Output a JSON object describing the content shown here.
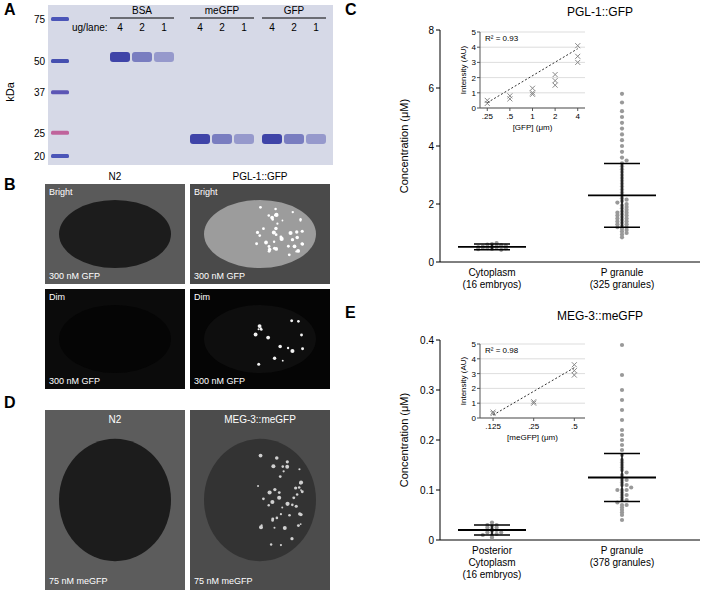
{
  "panel_labels": [
    "A",
    "B",
    "C",
    "D",
    "E"
  ],
  "gel": {
    "unit_label": "kDa",
    "ladder": [
      75,
      50,
      37,
      25,
      20
    ],
    "lane_header": "ug/lane:",
    "groups": [
      {
        "name": "BSA",
        "lanes": [
          4,
          2,
          1
        ]
      },
      {
        "name": "meGFP",
        "lanes": [
          4,
          2,
          1
        ]
      },
      {
        "name": "GFP",
        "lanes": [
          4,
          2,
          1
        ]
      }
    ]
  },
  "images_b": {
    "columns": [
      "N2",
      "PGL-1::GFP"
    ],
    "rows": [
      "Bright",
      "Dim"
    ],
    "caption": "300 nM GFP"
  },
  "images_d": {
    "columns": [
      "N2",
      "MEG-3::meGFP"
    ],
    "caption": "75 nM meGFP"
  },
  "chart_data": [
    {
      "type": "strip",
      "title": "PGL-1::GFP",
      "y_label": "Concentration (μM)",
      "categories": [
        "Cytoplasm\n(16 embryos)",
        "P granule\n(325 granules)"
      ],
      "points": [
        [
          0.45,
          0.5,
          0.52,
          0.55,
          0.48,
          0.6,
          0.62,
          0.42,
          0.5,
          0.58,
          0.65,
          0.47,
          0.53,
          0.56,
          0.44,
          0.51
        ],
        [
          0.85,
          0.95,
          1.0,
          1.05,
          1.1,
          1.15,
          1.2,
          1.2,
          1.25,
          1.3,
          1.3,
          1.35,
          1.4,
          1.4,
          1.45,
          1.5,
          1.5,
          1.55,
          1.6,
          1.6,
          1.65,
          1.7,
          1.7,
          1.75,
          1.8,
          1.85,
          1.9,
          1.95,
          2.0,
          2.05,
          2.1,
          2.15,
          2.2,
          2.3,
          2.4,
          2.5,
          2.6,
          2.7,
          2.8,
          2.9,
          3.0,
          3.1,
          3.2,
          3.3,
          3.4,
          3.5,
          3.6,
          3.8,
          4.0,
          4.2,
          4.4,
          4.6,
          4.8,
          5.0,
          5.2,
          5.5,
          5.8
        ]
      ],
      "values": [
        0.52,
        2.3
      ],
      "error": [
        0.1,
        1.1
      ],
      "color": "#999999",
      "ylim": [
        0,
        8
      ],
      "yticks": [
        0,
        2,
        4,
        6,
        8
      ]
    },
    {
      "type": "scatter",
      "x_label": "[GFP] (μm)",
      "y_label": "Intensity (AU)",
      "annotations": [
        "R² = 0.93"
      ],
      "log": "x",
      "grid": true,
      "xlim": [
        0.2,
        5
      ],
      "xticks": [
        {
          "value": 0.25,
          "label": ".25"
        },
        {
          "value": 0.5,
          "label": ".5"
        },
        1,
        2,
        4
      ],
      "ylim": [
        0,
        5
      ],
      "yticks": [
        0,
        1,
        2,
        3,
        4,
        5
      ],
      "series": [
        {
          "type": "scatter",
          "marker": "x",
          "color": "#888888",
          "x": [
            0.25,
            0.25,
            0.5,
            0.5,
            1,
            1,
            1,
            2,
            2,
            2,
            4,
            4,
            4
          ],
          "values": [
            0.3,
            0.5,
            0.6,
            0.8,
            1.3,
            1.0,
            0.9,
            2.2,
            1.8,
            1.5,
            4.1,
            3.4,
            3.0
          ]
        },
        {
          "type": "line",
          "line_style": "dotted",
          "color": "#333333",
          "x": [
            0.25,
            4
          ],
          "values": [
            0.35,
            3.9
          ]
        }
      ]
    },
    {
      "type": "strip",
      "title": "MEG-3::meGFP",
      "y_label": "Concentration (μM)",
      "categories": [
        "Posterior\nCytoplasm\n(16 embryos)",
        "P granule\n(378 granules)"
      ],
      "points": [
        [
          0.005,
          0.01,
          0.012,
          0.015,
          0.018,
          0.02,
          0.02,
          0.022,
          0.025,
          0.028,
          0.03,
          0.015,
          0.01,
          0.025,
          0.03,
          0.035
        ],
        [
          0.04,
          0.05,
          0.055,
          0.06,
          0.065,
          0.07,
          0.07,
          0.075,
          0.08,
          0.08,
          0.085,
          0.09,
          0.09,
          0.095,
          0.1,
          0.1,
          0.1,
          0.105,
          0.11,
          0.11,
          0.115,
          0.12,
          0.12,
          0.125,
          0.13,
          0.135,
          0.14,
          0.145,
          0.15,
          0.155,
          0.16,
          0.17,
          0.18,
          0.19,
          0.2,
          0.21,
          0.22,
          0.24,
          0.26,
          0.28,
          0.3,
          0.33,
          0.39
        ]
      ],
      "values": [
        0.02,
        0.125
      ],
      "error": [
        0.01,
        0.048
      ],
      "color": "#999999",
      "ylim": [
        0,
        0.4
      ],
      "yticks": [
        0,
        0.1,
        0.2,
        0.3,
        0.4
      ]
    },
    {
      "type": "scatter",
      "x_label": "[meGFP] (μm)",
      "y_label": "Intensity (AU)",
      "annotations": [
        "R² = 0.98"
      ],
      "log": "x",
      "grid": true,
      "xlim": [
        0.1,
        0.6
      ],
      "xticks": [
        {
          "value": 0.125,
          "label": ".125"
        },
        {
          "value": 0.25,
          "label": ".25"
        },
        {
          "value": 0.5,
          "label": ".5"
        }
      ],
      "ylim": [
        0,
        5
      ],
      "yticks": [
        0,
        1,
        2,
        3,
        4,
        5
      ],
      "series": [
        {
          "type": "scatter",
          "marker": "x",
          "color": "#888888",
          "x": [
            0.125,
            0.125,
            0.25,
            0.25,
            0.5,
            0.5,
            0.5
          ],
          "values": [
            0.3,
            0.4,
            1.0,
            1.1,
            3.6,
            2.9,
            3.2
          ]
        },
        {
          "type": "line",
          "line_style": "dotted",
          "color": "#333333",
          "x": [
            0.125,
            0.5
          ],
          "values": [
            0.2,
            3.4
          ]
        }
      ]
    }
  ]
}
